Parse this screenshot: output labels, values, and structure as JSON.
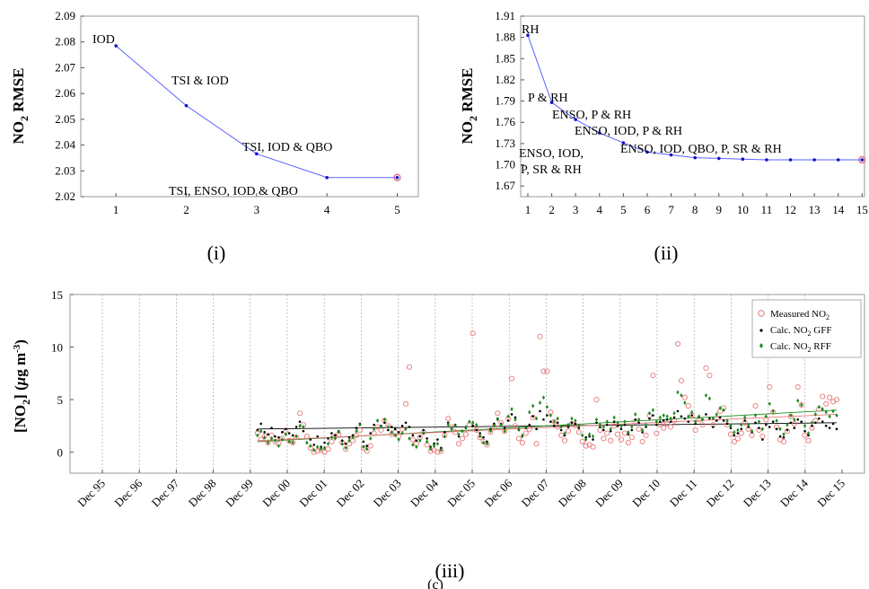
{
  "chart_data": [
    {
      "type": "line",
      "panel_label": "(i)",
      "ylabel": "NO",
      "ylabel_sub": "2",
      "ylabel_tail": " RMSE",
      "x": [
        1,
        2,
        3,
        4,
        5
      ],
      "values": [
        2.0785,
        2.0553,
        2.0366,
        2.0274,
        2.0274
      ],
      "annotations": [
        {
          "text": "IOD",
          "x": 1,
          "y": 2.0785
        },
        {
          "text": "TSI & IOD",
          "x": 2,
          "y": 2.0553
        },
        {
          "text": "TSI, IOD & QBO",
          "x": 3,
          "y": 2.0366
        },
        {
          "text": "TSI, ENSO, IOD & QBO",
          "x": 4,
          "y": 2.0274
        }
      ],
      "xlim": [
        0.5,
        5.3
      ],
      "ylim": [
        2.02,
        2.09
      ],
      "xticks": [
        1,
        2,
        3,
        4,
        5
      ],
      "yticks": [
        "2.02",
        "2.03",
        "2.04",
        "2.05",
        "2.06",
        "2.07",
        "2.08",
        "2.09"
      ],
      "highlight_x": 5,
      "colors": {
        "line": "#5b62ff",
        "marker": "#1010c8",
        "highlight": "#e06080"
      }
    },
    {
      "type": "line",
      "panel_label": "(ii)",
      "ylabel": "NO",
      "ylabel_sub": "2",
      "ylabel_tail": " RMSE",
      "x": [
        1,
        2,
        3,
        4,
        5,
        6,
        7,
        8,
        9,
        10,
        11,
        12,
        13,
        14,
        15
      ],
      "values": [
        1.883,
        1.788,
        1.764,
        1.745,
        1.731,
        1.718,
        1.714,
        1.71,
        1.709,
        1.708,
        1.707,
        1.707,
        1.707,
        1.707,
        1.707
      ],
      "annotations": [
        {
          "text": "RH",
          "x": 1
        },
        {
          "text": "P & RH",
          "x": 2
        },
        {
          "text": "ENSO, P & RH",
          "x": 3
        },
        {
          "text": "ENSO, IOD, P & RH",
          "x": 4
        },
        {
          "text": "ENSO, IOD,",
          "x": 5
        },
        {
          "text": "P, SR & RH",
          "x": 5
        },
        {
          "text": "ENSO, IOD, QBO, P, SR & RH",
          "x": 6
        }
      ],
      "xlim": [
        0.7,
        15.1
      ],
      "ylim": [
        1.655,
        1.91
      ],
      "xticks": [
        1,
        2,
        3,
        4,
        5,
        6,
        7,
        8,
        9,
        10,
        11,
        12,
        13,
        14,
        15
      ],
      "yticks": [
        "1.67",
        "1.70",
        "1.73",
        "1.76",
        "1.79",
        "1.82",
        "1.85",
        "1.88",
        "1.91"
      ],
      "highlight_x": 15,
      "colors": {
        "line": "#5b62ff",
        "marker": "#1010c8",
        "highlight": "#e06080"
      }
    },
    {
      "type": "scatter",
      "panel_label": "(iii)",
      "ylabel": "[NO",
      "ylabel_sub": "2",
      "ylabel_mid": "] (",
      "ylabel_mu": "μ",
      "ylabel_unit": "g m",
      "ylabel_sup": "-3",
      "ylabel_end": ")",
      "xticks": [
        "Dec 95",
        "Dec 96",
        "Dec 97",
        "Dec 98",
        "Dec 99",
        "Dec 00",
        "Dec 01",
        "Dec 02",
        "Dec 03",
        "Dec 04",
        "Dec 05",
        "Dec 06",
        "Dec 07",
        "Dec 08",
        "Dec 09",
        "Dec 10",
        "Dec 11",
        "Dec 12",
        "Dec 13",
        "Dec 14",
        "Dec 15"
      ],
      "yticks": [
        "0",
        "5",
        "10",
        "15"
      ],
      "ylim": [
        -2,
        15
      ],
      "series": [
        {
          "name": "Measured NO",
          "name_sub": "2",
          "marker": "open-circle",
          "color": "#e87878",
          "values": [
            1.8,
            1.2,
            1.5,
            0.9,
            1.6,
            1.0,
            0.8,
            1.3,
            2.0,
            1.1,
            0.9,
            1.4,
            3.7,
            2.6,
            1.5,
            0.4,
            0.0,
            0.1,
            0.2,
            0.0,
            0.3,
            1.0,
            1.5,
            1.7,
            0.9,
            0.3,
            0.8,
            1.1,
            1.6,
            2.1,
            0.4,
            0.1,
            0.6,
            1.8,
            2.4,
            2.1,
            3.0,
            2.5,
            1.7,
            1.9,
            1.5,
            2.2,
            4.6,
            8.1,
            1.2,
            0.8,
            1.4,
            1.9,
            0.7,
            0.1,
            0.2,
            0.0,
            0.1,
            1.6,
            3.2,
            2.4,
            1.9,
            0.8,
            1.3,
            1.7,
            2.6,
            11.3,
            2.1,
            1.4,
            1.0,
            0.7,
            1.9,
            2.4,
            3.7,
            2.8,
            2.0,
            3.2,
            7.0,
            2.5,
            1.3,
            0.9,
            1.8,
            2.2,
            3.3,
            0.8,
            11.0,
            7.7,
            7.7,
            3.8,
            2.9,
            2.4,
            1.6,
            1.1,
            2.0,
            2.7,
            2.5,
            1.9,
            1.0,
            0.6,
            0.7,
            0.5,
            5.0,
            2.1,
            1.3,
            1.8,
            1.1,
            2.5,
            1.7,
            1.2,
            1.8,
            0.9,
            1.4,
            2.9,
            2.2,
            1.0,
            1.6,
            3.5,
            7.3,
            1.8,
            2.6,
            2.3,
            2.7,
            2.4,
            3.0,
            10.3,
            6.8,
            5.2,
            4.4,
            3.5,
            2.1,
            3.1,
            2.6,
            8.0,
            7.3,
            2.6,
            3.2,
            3.9,
            4.2,
            2.6,
            1.7,
            1.0,
            1.3,
            1.8,
            2.8,
            2.2,
            1.6,
            4.4,
            2.1,
            1.5,
            3.1,
            6.2,
            3.8,
            2.4,
            1.2,
            1.0,
            2.0,
            3.4,
            2.7,
            6.2,
            4.5,
            1.6,
            1.1,
            2.3,
            3.0,
            4.1,
            5.3,
            4.6,
            5.2,
            4.8,
            5.0
          ]
        },
        {
          "name": "Calc. NO",
          "name_sub": "2",
          "name_tail": " GFF",
          "marker": "dot",
          "color": "#000000",
          "values": [
            2.1,
            2.7,
            1.9,
            1.7,
            2.3,
            1.5,
            1.4,
            1.9,
            2.2,
            1.8,
            1.6,
            2.4,
            2.9,
            2.0,
            0.9,
            1.2,
            0.7,
            1.5,
            0.5,
            0.9,
            1.3,
            1.8,
            1.6,
            2.0,
            1.1,
            0.8,
            1.4,
            1.6,
            2.3,
            2.7,
            1.0,
            0.6,
            1.8,
            2.6,
            3.0,
            2.5,
            2.8,
            2.1,
            2.4,
            2.2,
            1.9,
            2.5,
            2.8,
            2.4,
            1.6,
            1.1,
            1.5,
            2.1,
            1.3,
            0.5,
            0.8,
            1.2,
            0.4,
            1.9,
            2.8,
            2.2,
            2.6,
            1.5,
            2.0,
            2.3,
            2.9,
            2.5,
            2.1,
            1.8,
            1.4,
            1.0,
            2.2,
            2.7,
            3.2,
            2.7,
            2.3,
            3.0,
            3.6,
            3.3,
            2.1,
            1.5,
            2.3,
            2.6,
            3.4,
            2.2,
            3.9,
            3.1,
            3.5,
            2.9,
            2.5,
            2.8,
            2.1,
            1.6,
            2.4,
            2.8,
            2.7,
            2.3,
            1.6,
            1.4,
            1.5,
            1.2,
            2.8,
            2.4,
            2.1,
            2.6,
            2.0,
            2.9,
            2.5,
            2.2,
            2.6,
            1.7,
            2.1,
            3.1,
            2.8,
            1.9,
            2.4,
            3.2,
            3.5,
            2.6,
            2.9,
            3.0,
            3.1,
            2.9,
            3.3,
            3.9,
            3.4,
            3.2,
            2.9,
            3.5,
            2.7,
            3.3,
            3.1,
            3.6,
            3.2,
            2.4,
            3.0,
            3.3,
            3.0,
            2.7,
            2.3,
            1.6,
            1.8,
            2.2,
            3.0,
            2.4,
            1.9,
            2.8,
            2.3,
            1.2,
            2.6,
            2.4,
            2.9,
            2.2,
            1.5,
            1.4,
            2.1,
            2.8,
            2.3,
            3.1,
            2.9,
            2.0,
            1.6,
            2.5,
            2.8,
            3.2,
            2.9,
            2.5,
            2.3,
            2.7,
            2.2
          ]
        },
        {
          "name": "Calc. NO",
          "name_sub": "2",
          "name_tail": " RFF",
          "marker": "diamond",
          "color": "#1a8a1a",
          "values": [
            1.6,
            2.0,
            1.4,
            0.9,
            1.3,
            1.1,
            0.6,
            1.2,
            1.7,
            1.0,
            0.9,
            1.5,
            2.5,
            2.4,
            0.9,
            0.6,
            0.2,
            0.5,
            0.3,
            0.4,
            0.8,
            1.4,
            1.3,
            1.9,
            0.8,
            0.4,
            1.1,
            1.4,
            2.0,
            2.6,
            0.5,
            0.3,
            1.3,
            2.2,
            3.0,
            2.4,
            3.1,
            2.4,
            1.9,
            1.6,
            1.2,
            1.8,
            2.2,
            1.3,
            0.7,
            0.5,
            1.1,
            1.8,
            1.0,
            0.3,
            0.6,
            0.8,
            0.2,
            1.5,
            2.6,
            2.2,
            2.5,
            1.7,
            2.0,
            2.4,
            2.9,
            2.8,
            2.6,
            1.5,
            0.9,
            0.8,
            2.0,
            2.5,
            3.1,
            2.6,
            2.0,
            3.4,
            4.1,
            3.1,
            2.2,
            1.6,
            2.4,
            3.8,
            4.4,
            3.2,
            4.7,
            5.2,
            4.3,
            3.5,
            2.9,
            3.2,
            2.4,
            1.8,
            2.6,
            3.2,
            3.0,
            2.5,
            1.6,
            1.2,
            1.7,
            1.5,
            3.1,
            2.6,
            2.4,
            2.9,
            2.2,
            3.3,
            2.8,
            2.5,
            2.9,
            1.9,
            2.4,
            3.6,
            3.1,
            2.1,
            2.6,
            3.7,
            4.0,
            2.9,
            3.3,
            3.5,
            3.4,
            3.2,
            3.7,
            5.7,
            5.4,
            4.7,
            3.4,
            3.8,
            2.9,
            3.4,
            3.1,
            5.4,
            5.1,
            3.2,
            3.6,
            4.2,
            4.0,
            3.0,
            2.5,
            1.9,
            2.1,
            2.6,
            3.3,
            2.6,
            2.0,
            3.5,
            2.9,
            2.2,
            3.4,
            4.6,
            3.9,
            3.0,
            2.2,
            1.7,
            2.6,
            3.5,
            3.1,
            4.9,
            4.5,
            2.5,
            1.8,
            2.8,
            3.6,
            4.3,
            4.1,
            3.8,
            3.4,
            3.9,
            3.5
          ]
        }
      ],
      "trend_lines": [
        {
          "color": "#000000",
          "start": 2.2,
          "end": 2.8
        },
        {
          "color": "#1a8a1a",
          "start": 1.0,
          "end": 4.0
        },
        {
          "color": "#e87878",
          "start": 1.1,
          "end": 3.6
        }
      ]
    }
  ],
  "caption": "(c)"
}
